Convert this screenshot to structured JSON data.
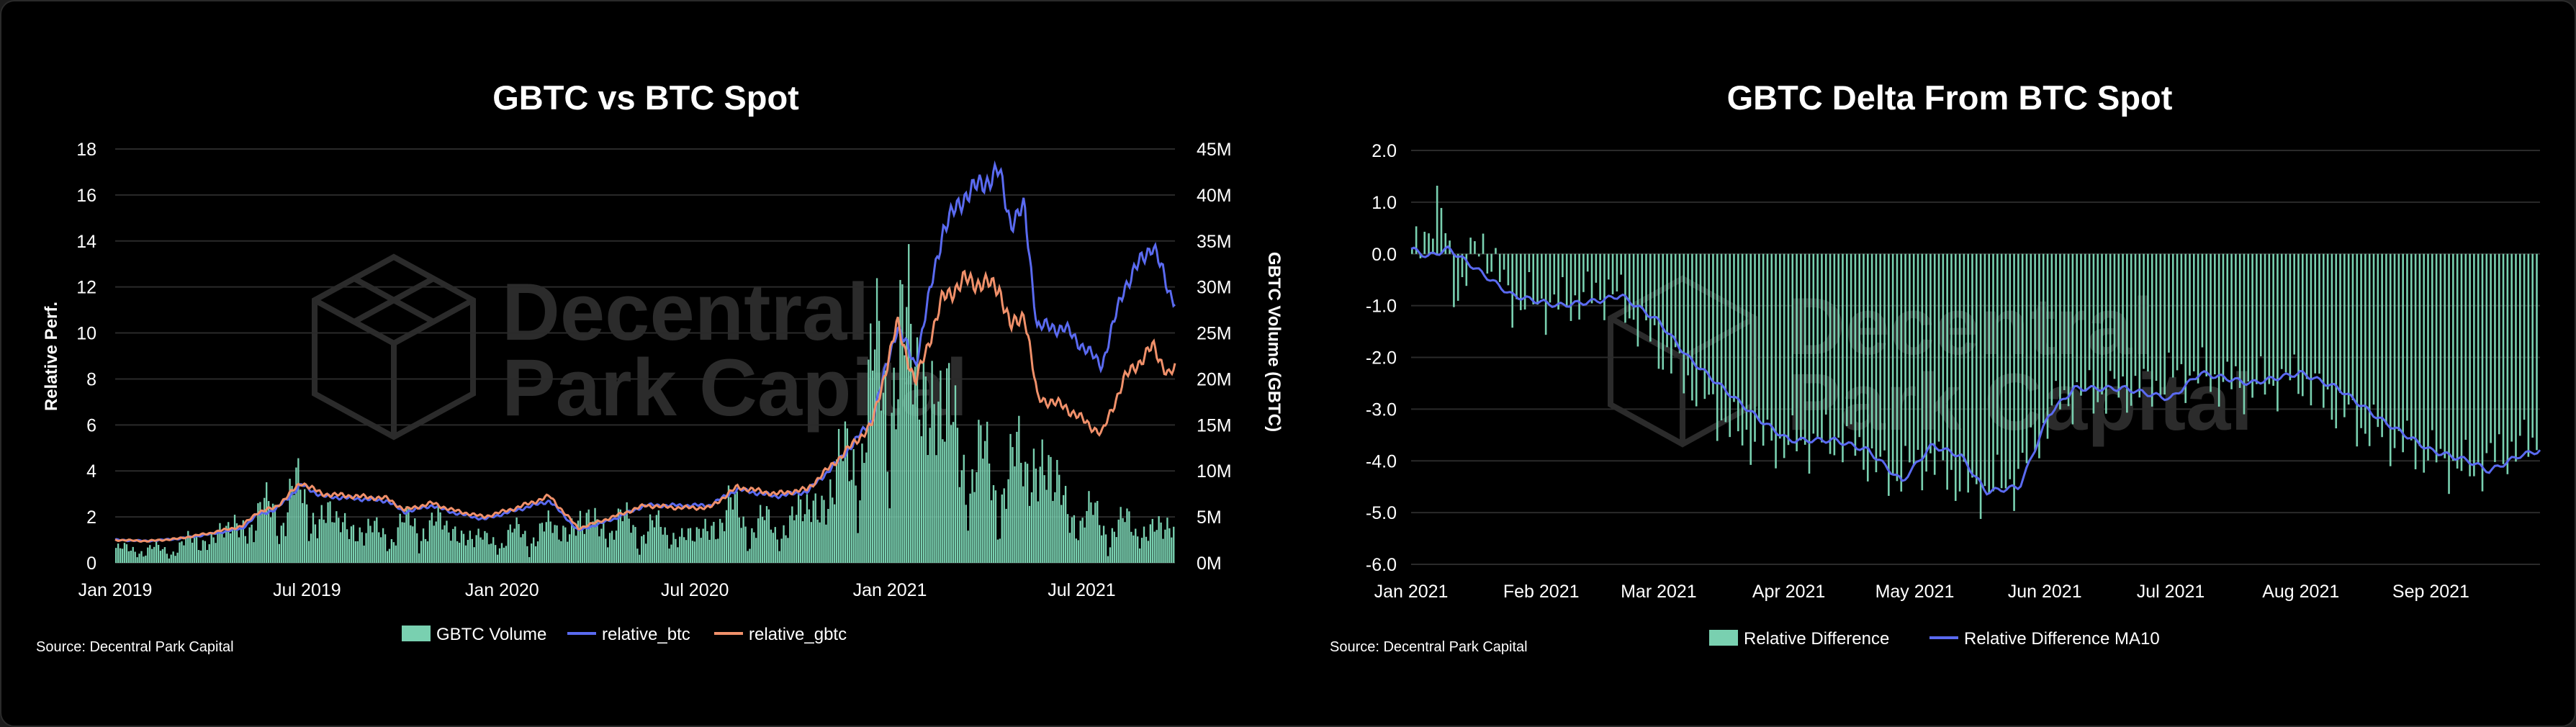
{
  "colors": {
    "background": "#000000",
    "volume_bar": "#79d0b0",
    "btc_line": "#5a6af0",
    "gbtc_line": "#f0906a",
    "diff_bar": "#79d0b0",
    "ma_line": "#5a6af0",
    "grid": "#2a2a2a",
    "watermark": "#2b2b2b"
  },
  "watermark": {
    "icon": "cube-logo-icon",
    "line1": "Decentral",
    "line2": "Park Capital"
  },
  "chart_data": [
    {
      "type": "line",
      "title": "GBTC vs BTC Spot",
      "ylabel": "Relative Perf.",
      "y2label": "GBTC Volume (GBTC)",
      "ylim": [
        0,
        18
      ],
      "y2lim": [
        0,
        45000000
      ],
      "yticks": [
        "0",
        "2",
        "4",
        "6",
        "8",
        "10",
        "12",
        "14",
        "16",
        "18"
      ],
      "y2ticks": [
        "0M",
        "5M",
        "10M",
        "15M",
        "20M",
        "25M",
        "30M",
        "35M",
        "40M",
        "45M"
      ],
      "xticks": [
        "Jan 2019",
        "Jul 2019",
        "Jan 2020",
        "Jul 2020",
        "Jan 2021",
        "Jul 2021"
      ],
      "x_range": [
        "2019-01-01",
        "2021-09-27"
      ],
      "legend_position": "bottom",
      "source": "Source: Decentral Park Capital",
      "series": [
        {
          "name": "GBTC Volume",
          "kind": "bar",
          "axis": "right",
          "points": [
            [
              "2019-01-01",
              2000000
            ],
            [
              "2019-02-15",
              1700000
            ],
            [
              "2019-04-01",
              3500000
            ],
            [
              "2019-05-15",
              6000000
            ],
            [
              "2019-06-20",
              9000000
            ],
            [
              "2019-07-15",
              6500000
            ],
            [
              "2019-09-01",
              4000000
            ],
            [
              "2019-10-28",
              5500000
            ],
            [
              "2019-12-15",
              3000000
            ],
            [
              "2020-02-15",
              4500000
            ],
            [
              "2020-03-15",
              5500000
            ],
            [
              "2020-05-10",
              5000000
            ],
            [
              "2020-07-01",
              3500000
            ],
            [
              "2020-08-01",
              7000000
            ],
            [
              "2020-09-15",
              4500000
            ],
            [
              "2020-11-01",
              9000000
            ],
            [
              "2020-12-01",
              16000000
            ],
            [
              "2020-12-20",
              24000000
            ],
            [
              "2021-01-10",
              30000000
            ],
            [
              "2021-02-10",
              24000000
            ],
            [
              "2021-03-15",
              14000000
            ],
            [
              "2021-04-15",
              11000000
            ],
            [
              "2021-05-20",
              15000000
            ],
            [
              "2021-06-20",
              7000000
            ],
            [
              "2021-08-01",
              5000000
            ],
            [
              "2021-09-27",
              4500000
            ]
          ]
        },
        {
          "name": "relative_btc",
          "kind": "line",
          "axis": "left",
          "points": [
            [
              "2019-01-01",
              1.0
            ],
            [
              "2019-02-01",
              0.95
            ],
            [
              "2019-03-01",
              1.05
            ],
            [
              "2019-04-01",
              1.25
            ],
            [
              "2019-05-01",
              1.5
            ],
            [
              "2019-05-15",
              2.1
            ],
            [
              "2019-06-01",
              2.3
            ],
            [
              "2019-06-26",
              3.4
            ],
            [
              "2019-07-15",
              2.9
            ],
            [
              "2019-08-15",
              2.8
            ],
            [
              "2019-09-15",
              2.7
            ],
            [
              "2019-10-01",
              2.2
            ],
            [
              "2019-10-27",
              2.5
            ],
            [
              "2019-11-15",
              2.2
            ],
            [
              "2019-12-15",
              1.9
            ],
            [
              "2020-01-15",
              2.3
            ],
            [
              "2020-02-15",
              2.7
            ],
            [
              "2020-03-13",
              1.4
            ],
            [
              "2020-04-15",
              1.9
            ],
            [
              "2020-05-15",
              2.5
            ],
            [
              "2020-06-15",
              2.5
            ],
            [
              "2020-07-15",
              2.5
            ],
            [
              "2020-08-10",
              3.2
            ],
            [
              "2020-09-15",
              2.9
            ],
            [
              "2020-10-15",
              3.1
            ],
            [
              "2020-11-15",
              4.5
            ],
            [
              "2020-12-15",
              6.2
            ],
            [
              "2021-01-08",
              10.3
            ],
            [
              "2021-01-25",
              8.6
            ],
            [
              "2021-02-20",
              14.5
            ],
            [
              "2021-03-13",
              16.0
            ],
            [
              "2021-04-14",
              17.0
            ],
            [
              "2021-04-25",
              14.8
            ],
            [
              "2021-05-08",
              15.4
            ],
            [
              "2021-05-20",
              10.3
            ],
            [
              "2021-06-15",
              10.2
            ],
            [
              "2021-07-20",
              8.6
            ],
            [
              "2021-08-10",
              12.0
            ],
            [
              "2021-09-06",
              13.9
            ],
            [
              "2021-09-21",
              11.8
            ],
            [
              "2021-09-27",
              11.5
            ]
          ]
        },
        {
          "name": "relative_gbtc",
          "kind": "line",
          "axis": "left",
          "points": [
            [
              "2019-01-01",
              1.0
            ],
            [
              "2019-02-01",
              0.95
            ],
            [
              "2019-03-01",
              1.05
            ],
            [
              "2019-04-01",
              1.3
            ],
            [
              "2019-05-01",
              1.6
            ],
            [
              "2019-05-15",
              2.2
            ],
            [
              "2019-06-01",
              2.4
            ],
            [
              "2019-06-26",
              3.5
            ],
            [
              "2019-07-15",
              3.0
            ],
            [
              "2019-08-15",
              2.9
            ],
            [
              "2019-09-15",
              2.8
            ],
            [
              "2019-10-01",
              2.3
            ],
            [
              "2019-10-27",
              2.6
            ],
            [
              "2019-11-15",
              2.3
            ],
            [
              "2019-12-15",
              2.0
            ],
            [
              "2020-01-15",
              2.4
            ],
            [
              "2020-02-15",
              2.9
            ],
            [
              "2020-03-13",
              1.5
            ],
            [
              "2020-04-15",
              2.0
            ],
            [
              "2020-05-15",
              2.5
            ],
            [
              "2020-06-15",
              2.4
            ],
            [
              "2020-07-15",
              2.4
            ],
            [
              "2020-08-10",
              3.3
            ],
            [
              "2020-09-15",
              3.0
            ],
            [
              "2020-10-15",
              3.2
            ],
            [
              "2020-11-15",
              4.6
            ],
            [
              "2020-12-15",
              6.0
            ],
            [
              "2021-01-08",
              10.4
            ],
            [
              "2021-01-25",
              7.8
            ],
            [
              "2021-02-20",
              11.5
            ],
            [
              "2021-03-13",
              12.3
            ],
            [
              "2021-04-14",
              12.0
            ],
            [
              "2021-04-25",
              10.2
            ],
            [
              "2021-05-08",
              10.9
            ],
            [
              "2021-05-20",
              7.2
            ],
            [
              "2021-06-15",
              6.8
            ],
            [
              "2021-07-20",
              5.6
            ],
            [
              "2021-08-10",
              8.0
            ],
            [
              "2021-09-06",
              9.4
            ],
            [
              "2021-09-21",
              8.2
            ],
            [
              "2021-09-27",
              8.4
            ]
          ]
        }
      ]
    },
    {
      "type": "bar",
      "title": "GBTC Delta From BTC Spot",
      "ylim": [
        -6.0,
        2.0
      ],
      "yticks": [
        "-6.0",
        "-5.0",
        "-4.0",
        "-3.0",
        "-2.0",
        "-1.0",
        "0.0",
        "1.0",
        "2.0"
      ],
      "xticks": [
        "Jan 2021",
        "Feb 2021",
        "Mar 2021",
        "Apr 2021",
        "May 2021",
        "Jun 2021",
        "Jul 2021",
        "Aug 2021",
        "Sep 2021"
      ],
      "x_range": [
        "2021-01-01",
        "2021-09-27"
      ],
      "legend_position": "bottom",
      "source": "Source: Decentral Park Capital",
      "series": [
        {
          "name": "Relative Difference",
          "kind": "bar",
          "points": [
            [
              "2021-01-01",
              -0.2
            ],
            [
              "2021-01-08",
              1.0
            ],
            [
              "2021-01-12",
              -0.8
            ],
            [
              "2021-01-18",
              0.3
            ],
            [
              "2021-01-25",
              -0.9
            ],
            [
              "2021-02-05",
              -1.0
            ],
            [
              "2021-02-18",
              -0.7
            ],
            [
              "2021-03-01",
              -1.8
            ],
            [
              "2021-03-10",
              -2.6
            ],
            [
              "2021-03-20",
              -3.5
            ],
            [
              "2021-04-01",
              -3.7
            ],
            [
              "2021-04-15",
              -3.6
            ],
            [
              "2021-04-25",
              -4.3
            ],
            [
              "2021-05-05",
              -4.0
            ],
            [
              "2021-05-15",
              -4.6
            ],
            [
              "2021-05-25",
              -4.4
            ],
            [
              "2021-06-05",
              -2.8
            ],
            [
              "2021-06-15",
              -2.7
            ],
            [
              "2021-06-25",
              -2.6
            ],
            [
              "2021-07-05",
              -2.3
            ],
            [
              "2021-07-20",
              -2.6
            ],
            [
              "2021-08-01",
              -2.4
            ],
            [
              "2021-08-15",
              -3.3
            ],
            [
              "2021-09-01",
              -3.9
            ],
            [
              "2021-09-10",
              -4.2
            ],
            [
              "2021-09-20",
              -3.8
            ],
            [
              "2021-09-27",
              -3.6
            ]
          ]
        },
        {
          "name": "Relative Difference MA10",
          "kind": "line",
          "points": [
            [
              "2021-01-01",
              0.1
            ],
            [
              "2021-01-05",
              -0.05
            ],
            [
              "2021-01-10",
              0.1
            ],
            [
              "2021-01-15",
              -0.2
            ],
            [
              "2021-01-25",
              -0.8
            ],
            [
              "2021-02-05",
              -1.0
            ],
            [
              "2021-02-15",
              -0.9
            ],
            [
              "2021-02-20",
              -0.8
            ],
            [
              "2021-03-01",
              -1.3
            ],
            [
              "2021-03-08",
              -2.0
            ],
            [
              "2021-03-15",
              -2.5
            ],
            [
              "2021-03-25",
              -3.2
            ],
            [
              "2021-04-01",
              -3.6
            ],
            [
              "2021-04-12",
              -3.6
            ],
            [
              "2021-04-20",
              -3.8
            ],
            [
              "2021-04-28",
              -4.4
            ],
            [
              "2021-05-05",
              -3.7
            ],
            [
              "2021-05-12",
              -3.9
            ],
            [
              "2021-05-18",
              -4.6
            ],
            [
              "2021-05-26",
              -4.5
            ],
            [
              "2021-06-02",
              -3.1
            ],
            [
              "2021-06-08",
              -2.6
            ],
            [
              "2021-06-20",
              -2.6
            ],
            [
              "2021-07-01",
              -2.8
            ],
            [
              "2021-07-08",
              -2.3
            ],
            [
              "2021-07-20",
              -2.5
            ],
            [
              "2021-08-01",
              -2.3
            ],
            [
              "2021-08-10",
              -2.6
            ],
            [
              "2021-08-20",
              -3.2
            ],
            [
              "2021-09-01",
              -3.8
            ],
            [
              "2021-09-10",
              -4.0
            ],
            [
              "2021-09-15",
              -4.2
            ],
            [
              "2021-09-22",
              -3.9
            ],
            [
              "2021-09-27",
              -3.8
            ]
          ]
        }
      ]
    }
  ]
}
